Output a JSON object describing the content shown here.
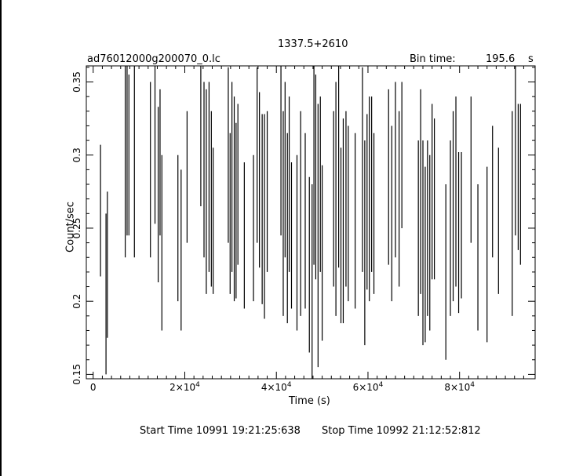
{
  "chart_data": {
    "type": "line",
    "title": "1337.5+2610",
    "file_label": "ad76012000g200070_0.lc",
    "bin_time_label": "Bin time:",
    "bin_time_value": "195.6",
    "bin_time_unit": "s",
    "xlabel": "Time (s)",
    "ylabel": "Count/sec",
    "xlim": [
      -1500,
      96500
    ],
    "ylim": [
      0.147,
      0.361
    ],
    "xticks": [
      {
        "value": 0,
        "mant": "0",
        "exp": ""
      },
      {
        "value": 20000,
        "mant": "2×10",
        "exp": "4"
      },
      {
        "value": 40000,
        "mant": "4×10",
        "exp": "4"
      },
      {
        "value": 60000,
        "mant": "6×10",
        "exp": "4"
      },
      {
        "value": 80000,
        "mant": "8×10",
        "exp": "4"
      }
    ],
    "yticks": [
      {
        "value": 0.15,
        "label": "0.15"
      },
      {
        "value": 0.2,
        "label": "0.2"
      },
      {
        "value": 0.25,
        "label": "0.25"
      },
      {
        "value": 0.3,
        "label": "0.3"
      },
      {
        "value": 0.35,
        "label": "0.35"
      }
    ],
    "grid": false,
    "series": [
      {
        "x": [
          1600,
          2800,
          3100,
          7000,
          7400,
          7800,
          9000,
          12500,
          13500,
          14200,
          14600,
          15000,
          18500,
          19200,
          20500,
          23500,
          24200,
          24700,
          25300,
          25800,
          26200,
          29500,
          29900,
          30300,
          30800,
          31200,
          31600,
          33000,
          35000,
          35800,
          36300,
          36900,
          37400,
          38000,
          41000,
          41500,
          41900,
          42400,
          42800,
          43300,
          44500,
          45300,
          46300,
          47200,
          47800,
          48200,
          48600,
          49100,
          49600,
          50000,
          52500,
          53000,
          53600,
          54100,
          54600,
          55200,
          55700,
          57200,
          58800,
          59300,
          59800,
          60300,
          60800,
          61300,
          64500,
          65200,
          66000,
          66800,
          67400,
          71000,
          71500,
          72000,
          72500,
          73000,
          73500,
          74000,
          74500,
          77000,
          78000,
          78600,
          79200,
          79800,
          80400,
          82500,
          84000,
          86000,
          87200,
          88500,
          91500,
          92200,
          92800,
          93300
        ],
        "y": [
          0.262,
          0.205,
          0.225,
          0.3,
          0.305,
          0.3,
          0.3,
          0.29,
          0.318,
          0.273,
          0.295,
          0.24,
          0.25,
          0.235,
          0.285,
          0.32,
          0.29,
          0.275,
          0.285,
          0.27,
          0.255,
          0.3,
          0.26,
          0.285,
          0.27,
          0.262,
          0.28,
          0.245,
          0.25,
          0.3,
          0.283,
          0.263,
          0.258,
          0.275,
          0.305,
          0.26,
          0.29,
          0.25,
          0.28,
          0.245,
          0.24,
          0.26,
          0.255,
          0.225,
          0.21,
          0.295,
          0.285,
          0.245,
          0.28,
          0.233,
          0.27,
          0.27,
          0.293,
          0.245,
          0.255,
          0.27,
          0.26,
          0.255,
          0.29,
          0.24,
          0.268,
          0.27,
          0.28,
          0.26,
          0.285,
          0.26,
          0.29,
          0.27,
          0.3,
          0.25,
          0.275,
          0.24,
          0.232,
          0.25,
          0.24,
          0.275,
          0.27,
          0.22,
          0.25,
          0.265,
          0.275,
          0.247,
          0.252,
          0.29,
          0.23,
          0.232,
          0.275,
          0.255,
          0.26,
          0.305,
          0.285,
          0.28
        ],
        "err": [
          0.045,
          0.055,
          0.05,
          0.07,
          0.06,
          0.055,
          0.07,
          0.06,
          0.065,
          0.06,
          0.05,
          0.06,
          0.05,
          0.055,
          0.045,
          0.055,
          0.06,
          0.07,
          0.065,
          0.06,
          0.05,
          0.06,
          0.055,
          0.065,
          0.07,
          0.06,
          0.055,
          0.05,
          0.05,
          0.06,
          0.06,
          0.065,
          0.07,
          0.055,
          0.06,
          0.07,
          0.06,
          0.065,
          0.06,
          0.05,
          0.06,
          0.07,
          0.06,
          0.06,
          0.07,
          0.07,
          0.07,
          0.09,
          0.06,
          0.06,
          0.06,
          0.08,
          0.07,
          0.06,
          0.07,
          0.06,
          0.06,
          0.06,
          0.07,
          0.07,
          0.06,
          0.07,
          0.06,
          0.055,
          0.06,
          0.06,
          0.06,
          0.06,
          0.05,
          0.06,
          0.07,
          0.07,
          0.06,
          0.06,
          0.06,
          0.06,
          0.055,
          0.06,
          0.06,
          0.065,
          0.065,
          0.055,
          0.05,
          0.05,
          0.05,
          0.06,
          0.045,
          0.05,
          0.07,
          0.06,
          0.05,
          0.055
        ]
      }
    ]
  },
  "footer": {
    "start_time": "Start Time 10991 19:21:25:638",
    "stop_time": "Stop Time 10992 21:12:52:812"
  }
}
